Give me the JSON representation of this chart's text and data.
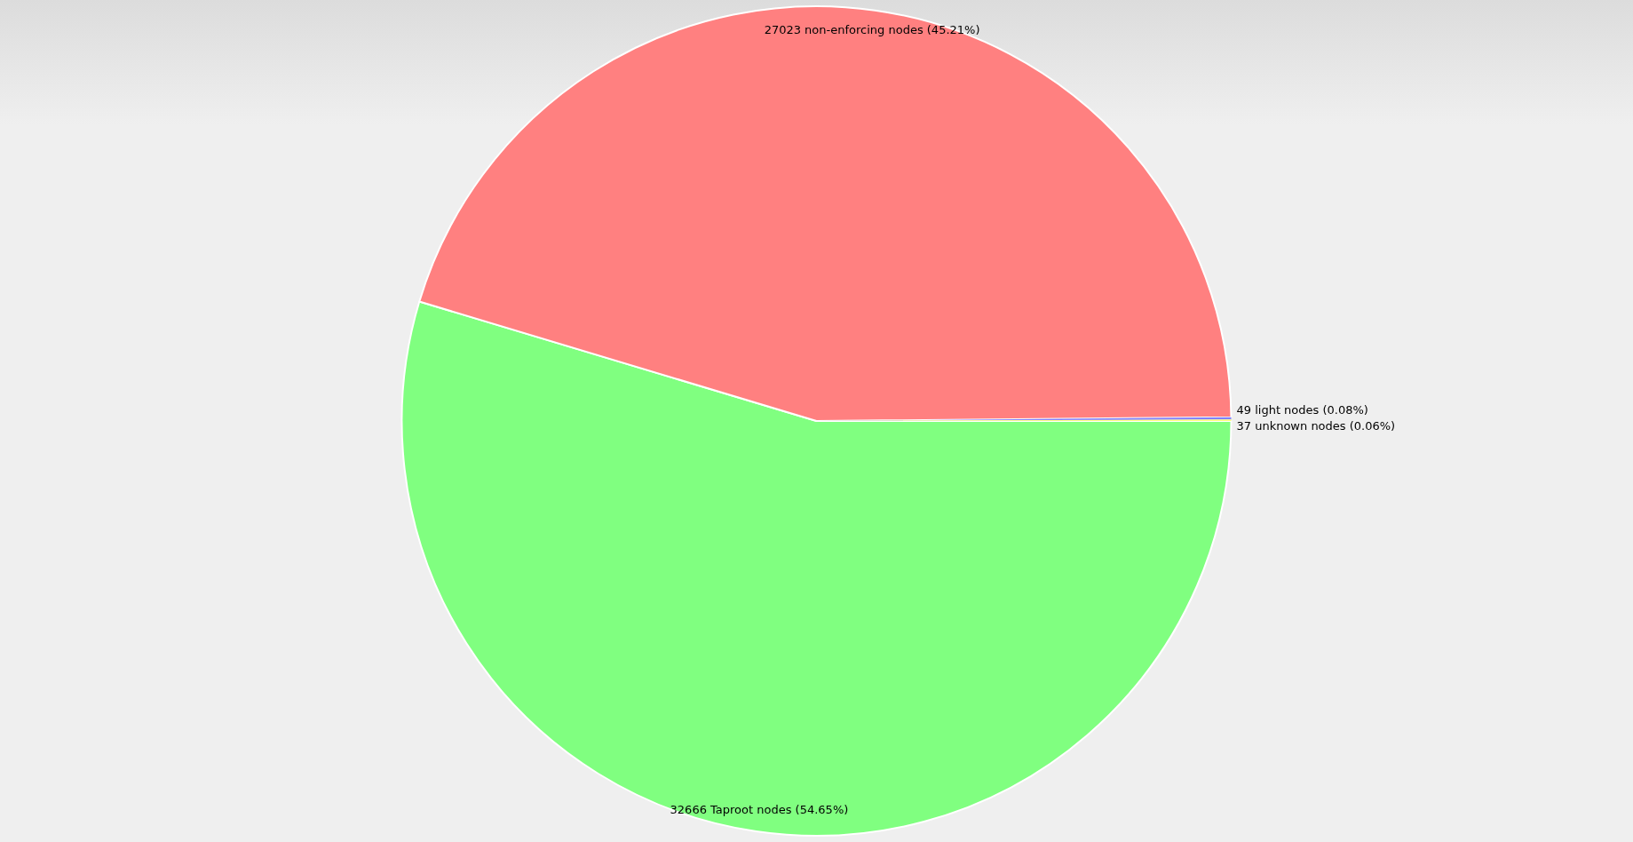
{
  "chart_data": {
    "type": "pie",
    "categories": [
      "32666 Taproot nodes (54.65%)",
      "27023 non-enforcing nodes (45.21%)",
      "49 light nodes (0.08%)",
      "37 unknown nodes (0.06%)"
    ],
    "values": [
      32666,
      27023,
      49,
      37
    ],
    "colors": [
      "#80ff80",
      "#ff8080",
      "#8080ff",
      "#ffff80"
    ],
    "legend": false
  }
}
